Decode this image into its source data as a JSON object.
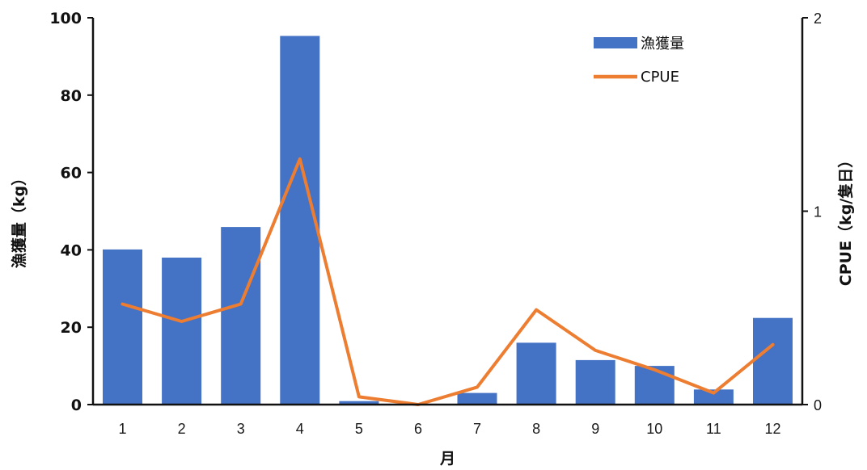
{
  "chart_data": {
    "type": "bar+line",
    "title": "",
    "xlabel": "月",
    "ylabel_left": "漁獲量（kg）",
    "ylabel_right": "CPUE（kg/隻日）",
    "categories": [
      "1",
      "2",
      "3",
      "4",
      "5",
      "6",
      "7",
      "8",
      "9",
      "10",
      "11",
      "12"
    ],
    "ylim_left": [
      0,
      100
    ],
    "ylim_right": [
      0,
      2
    ],
    "yticks_left": [
      "0",
      "20",
      "40",
      "60",
      "80",
      "100"
    ],
    "yticks_right": [
      "0",
      "1",
      "2"
    ],
    "series": [
      {
        "name": "漁獲量",
        "type": "bar",
        "axis": "left",
        "color": "#4472C4",
        "values": [
          40.1,
          38.0,
          45.9,
          95.3,
          0.9,
          0.0,
          3.0,
          16.0,
          11.5,
          10.0,
          3.9,
          22.4
        ]
      },
      {
        "name": "CPUE",
        "type": "line",
        "axis": "right",
        "color": "#ED7D31",
        "values": [
          0.52,
          0.43,
          0.52,
          1.27,
          0.04,
          0.0,
          0.09,
          0.49,
          0.28,
          0.18,
          0.06,
          0.31
        ]
      }
    ],
    "grid": false,
    "legend": "top-right"
  }
}
